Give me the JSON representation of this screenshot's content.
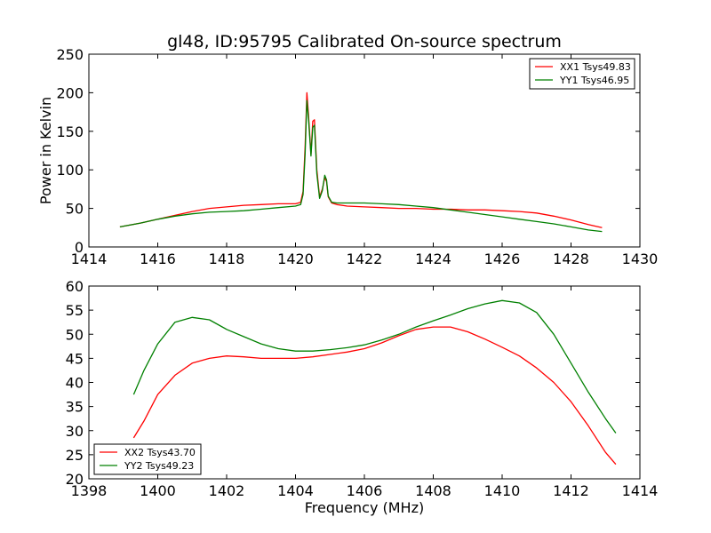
{
  "figure": {
    "title": "gl48, ID:95795 Calibrated On-source spectrum",
    "xlabel": "Frequency (MHz)"
  },
  "chart_data": [
    {
      "type": "line",
      "title": "gl48, ID:95795 Calibrated On-source spectrum",
      "xlabel": "",
      "ylabel": "Power in Kelvin",
      "xlim": [
        1414,
        1430
      ],
      "ylim": [
        0,
        250
      ],
      "xticks": [
        1414,
        1416,
        1418,
        1420,
        1422,
        1424,
        1426,
        1428,
        1430
      ],
      "yticks": [
        0,
        50,
        100,
        150,
        200,
        250
      ],
      "grid": false,
      "legend_position": "top-right",
      "series": [
        {
          "name": "XX1 Tsys49.83",
          "color": "#ff0000",
          "x": [
            1414.9,
            1415.5,
            1416.0,
            1416.5,
            1417.0,
            1417.5,
            1418.0,
            1418.5,
            1419.0,
            1419.5,
            1420.0,
            1420.15,
            1420.22,
            1420.28,
            1420.33,
            1420.38,
            1420.45,
            1420.5,
            1420.55,
            1420.62,
            1420.7,
            1420.78,
            1420.85,
            1420.9,
            1420.95,
            1421.05,
            1421.2,
            1421.5,
            1422.0,
            1422.5,
            1423.0,
            1423.5,
            1424.0,
            1424.5,
            1425.0,
            1425.5,
            1426.0,
            1426.5,
            1427.0,
            1427.5,
            1428.0,
            1428.5,
            1428.9
          ],
          "y": [
            26,
            31,
            36,
            41,
            46,
            50,
            52,
            54,
            55,
            56,
            56,
            58,
            72,
            130,
            200,
            170,
            120,
            163,
            165,
            100,
            65,
            75,
            90,
            85,
            65,
            57,
            55,
            53,
            52,
            51,
            50,
            50,
            49,
            49,
            48,
            48,
            47,
            46,
            44,
            40,
            35,
            29,
            25
          ]
        },
        {
          "name": "YY1 Tsys46.95",
          "color": "#008000",
          "x": [
            1414.9,
            1415.5,
            1416.0,
            1416.5,
            1417.0,
            1417.5,
            1418.0,
            1418.5,
            1419.0,
            1419.5,
            1420.0,
            1420.15,
            1420.22,
            1420.28,
            1420.33,
            1420.38,
            1420.45,
            1420.5,
            1420.55,
            1420.62,
            1420.7,
            1420.78,
            1420.85,
            1420.9,
            1420.95,
            1421.05,
            1421.2,
            1421.5,
            1422.0,
            1422.5,
            1423.0,
            1423.5,
            1424.0,
            1424.5,
            1425.0,
            1425.5,
            1426.0,
            1426.5,
            1427.0,
            1427.5,
            1428.0,
            1428.5,
            1428.9
          ],
          "y": [
            26,
            31,
            36,
            40,
            43,
            45,
            46,
            47,
            49,
            51,
            53,
            55,
            68,
            120,
            190,
            165,
            118,
            155,
            158,
            95,
            63,
            73,
            93,
            87,
            66,
            58,
            57,
            57,
            57,
            56,
            55,
            53,
            51,
            48,
            45,
            42,
            39,
            36,
            33,
            30,
            26,
            22,
            20
          ]
        }
      ]
    },
    {
      "type": "line",
      "title": "",
      "xlabel": "Frequency (MHz)",
      "ylabel": "",
      "xlim": [
        1398,
        1414
      ],
      "ylim": [
        20,
        60
      ],
      "xticks": [
        1398,
        1400,
        1402,
        1404,
        1406,
        1408,
        1410,
        1412,
        1414
      ],
      "yticks": [
        20,
        25,
        30,
        35,
        40,
        45,
        50,
        55,
        60
      ],
      "grid": false,
      "legend_position": "bottom-left",
      "series": [
        {
          "name": "XX2 Tsys43.70",
          "color": "#ff0000",
          "x": [
            1399.3,
            1399.6,
            1400.0,
            1400.5,
            1401.0,
            1401.5,
            1402.0,
            1402.5,
            1403.0,
            1403.5,
            1404.0,
            1404.5,
            1405.0,
            1405.5,
            1406.0,
            1406.5,
            1407.0,
            1407.5,
            1408.0,
            1408.5,
            1409.0,
            1409.5,
            1410.0,
            1410.5,
            1411.0,
            1411.5,
            1412.0,
            1412.5,
            1413.0,
            1413.3
          ],
          "y": [
            28.5,
            32,
            37.5,
            41.5,
            44,
            45,
            45.5,
            45.3,
            45,
            45,
            45,
            45.3,
            45.8,
            46.3,
            47,
            48.2,
            49.7,
            51,
            51.5,
            51.5,
            50.5,
            49,
            47.3,
            45.5,
            43,
            40,
            36,
            31,
            25.5,
            23
          ]
        },
        {
          "name": "YY2 Tsys49.23",
          "color": "#008000",
          "x": [
            1399.3,
            1399.6,
            1400.0,
            1400.5,
            1401.0,
            1401.5,
            1402.0,
            1402.5,
            1403.0,
            1403.5,
            1404.0,
            1404.5,
            1405.0,
            1405.5,
            1406.0,
            1406.5,
            1407.0,
            1407.5,
            1408.0,
            1408.5,
            1409.0,
            1409.5,
            1410.0,
            1410.5,
            1411.0,
            1411.5,
            1412.0,
            1412.5,
            1413.0,
            1413.3
          ],
          "y": [
            37.5,
            42.5,
            48,
            52.5,
            53.5,
            53,
            51,
            49.5,
            48,
            47,
            46.5,
            46.5,
            46.8,
            47.2,
            47.8,
            48.8,
            50,
            51.5,
            52.8,
            54,
            55.3,
            56.3,
            57,
            56.5,
            54.5,
            50,
            44,
            38,
            32.5,
            29.5
          ]
        }
      ]
    }
  ]
}
